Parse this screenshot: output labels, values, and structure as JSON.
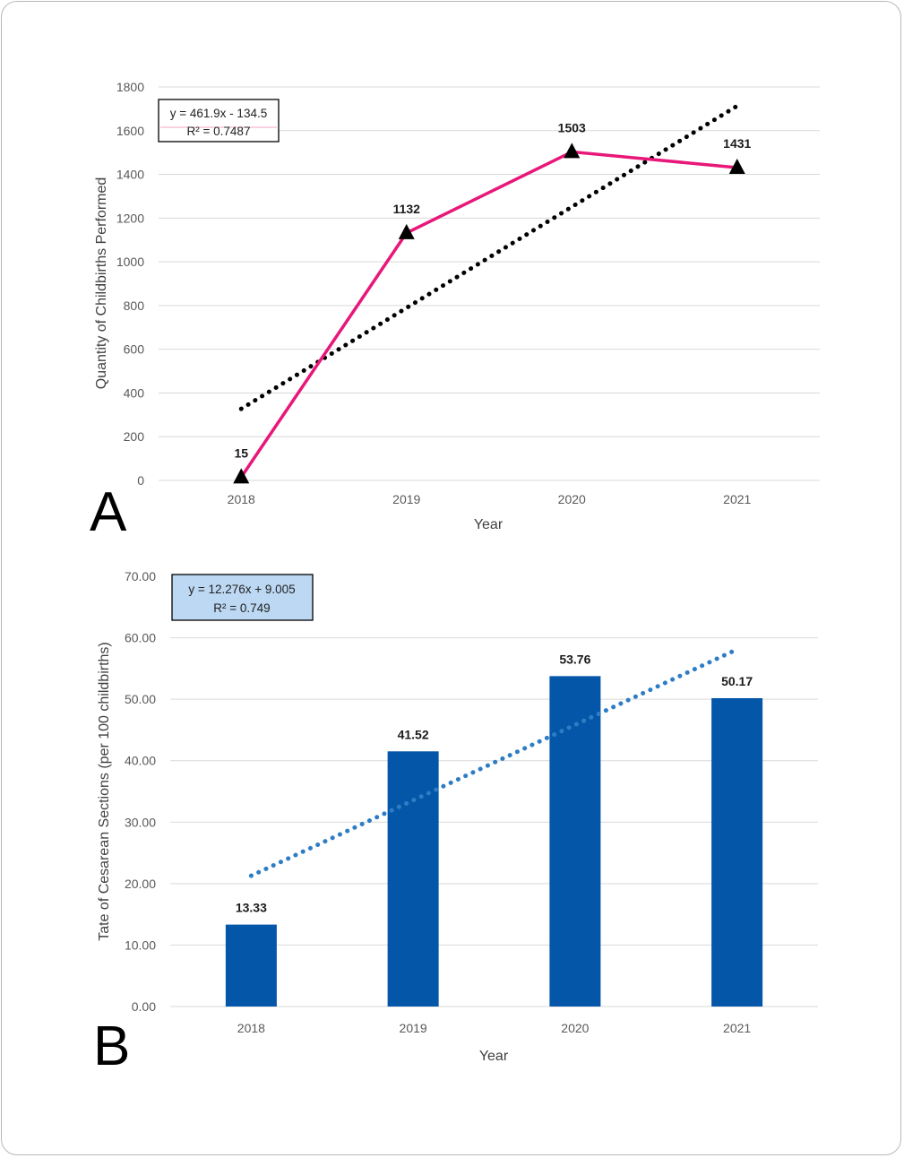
{
  "colors": {
    "line_a": "#e8177a",
    "trend_a": "#000000",
    "bar_b": "#0356a8",
    "trend_b": "#2e7dc4",
    "grid": "#d9d9d9",
    "eq_box_b_fill": "#bcd8f3"
  },
  "chart_data": [
    {
      "type": "line",
      "panel_label": "A",
      "categories": [
        "2018",
        "2019",
        "2020",
        "2021"
      ],
      "values": [
        15,
        1132,
        1503,
        1431
      ],
      "data_labels": [
        "15",
        "1132",
        "1503",
        "1431"
      ],
      "marker": "triangle",
      "xlabel": "Year",
      "ylabel": "Quantity of Childbirths Performed",
      "ylim": [
        0,
        1800
      ],
      "yticks": [
        "0",
        "200",
        "400",
        "600",
        "800",
        "1000",
        "1200",
        "1400",
        "1600",
        "1800"
      ],
      "grid": true,
      "trendline": {
        "type": "linear",
        "slope": 461.9,
        "intercept": -134.5,
        "equation": "y = 461.9x - 134.5",
        "r2": "R² = 0.7487"
      }
    },
    {
      "type": "bar",
      "panel_label": "B",
      "categories": [
        "2018",
        "2019",
        "2020",
        "2021"
      ],
      "values": [
        13.33,
        41.52,
        53.76,
        50.17
      ],
      "data_labels": [
        "13.33",
        "41.52",
        "53.76",
        "50.17"
      ],
      "xlabel": "Year",
      "ylabel": "Tate of Cesarean Sections  (per 100 childbirths)",
      "ylim": [
        0,
        70
      ],
      "yticks": [
        "0.00",
        "10.00",
        "20.00",
        "30.00",
        "40.00",
        "50.00",
        "60.00",
        "70.00"
      ],
      "grid": true,
      "trendline": {
        "type": "linear",
        "slope": 12.276,
        "intercept": 9.005,
        "equation": "y = 12.276x + 9.005",
        "r2": "R² = 0.749"
      }
    }
  ]
}
